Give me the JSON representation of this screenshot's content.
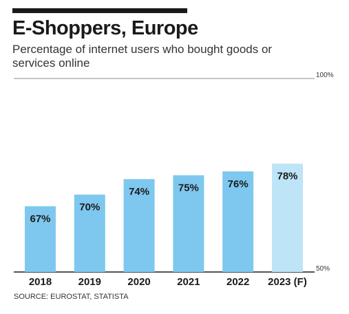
{
  "header": {
    "title": "E-Shoppers, Europe",
    "subtitle": "Percentage of internet users who bought goods or services online"
  },
  "footer": {
    "source": "SOURCE: EUROSTAT, STATISTA"
  },
  "colors": {
    "bar": "#7ec8ef",
    "bar_forecast": "#bde4f7",
    "text": "#1a1a1a"
  },
  "chart_data": {
    "type": "bar",
    "title": "E-Shoppers, Europe",
    "subtitle": "Percentage of internet users who bought goods or services online",
    "categories": [
      "2018",
      "2019",
      "2020",
      "2021",
      "2022",
      "2023 (F)"
    ],
    "values": [
      67,
      70,
      74,
      75,
      76,
      78
    ],
    "data_labels": [
      "67%",
      "70%",
      "74%",
      "75%",
      "76%",
      "78%"
    ],
    "forecast": [
      false,
      false,
      false,
      false,
      false,
      true
    ],
    "ylim": [
      50,
      100
    ],
    "yticks": [
      {
        "value": 100,
        "label": "100%"
      },
      {
        "value": 50,
        "label": "50%"
      }
    ],
    "grid": false,
    "legend": "none"
  }
}
